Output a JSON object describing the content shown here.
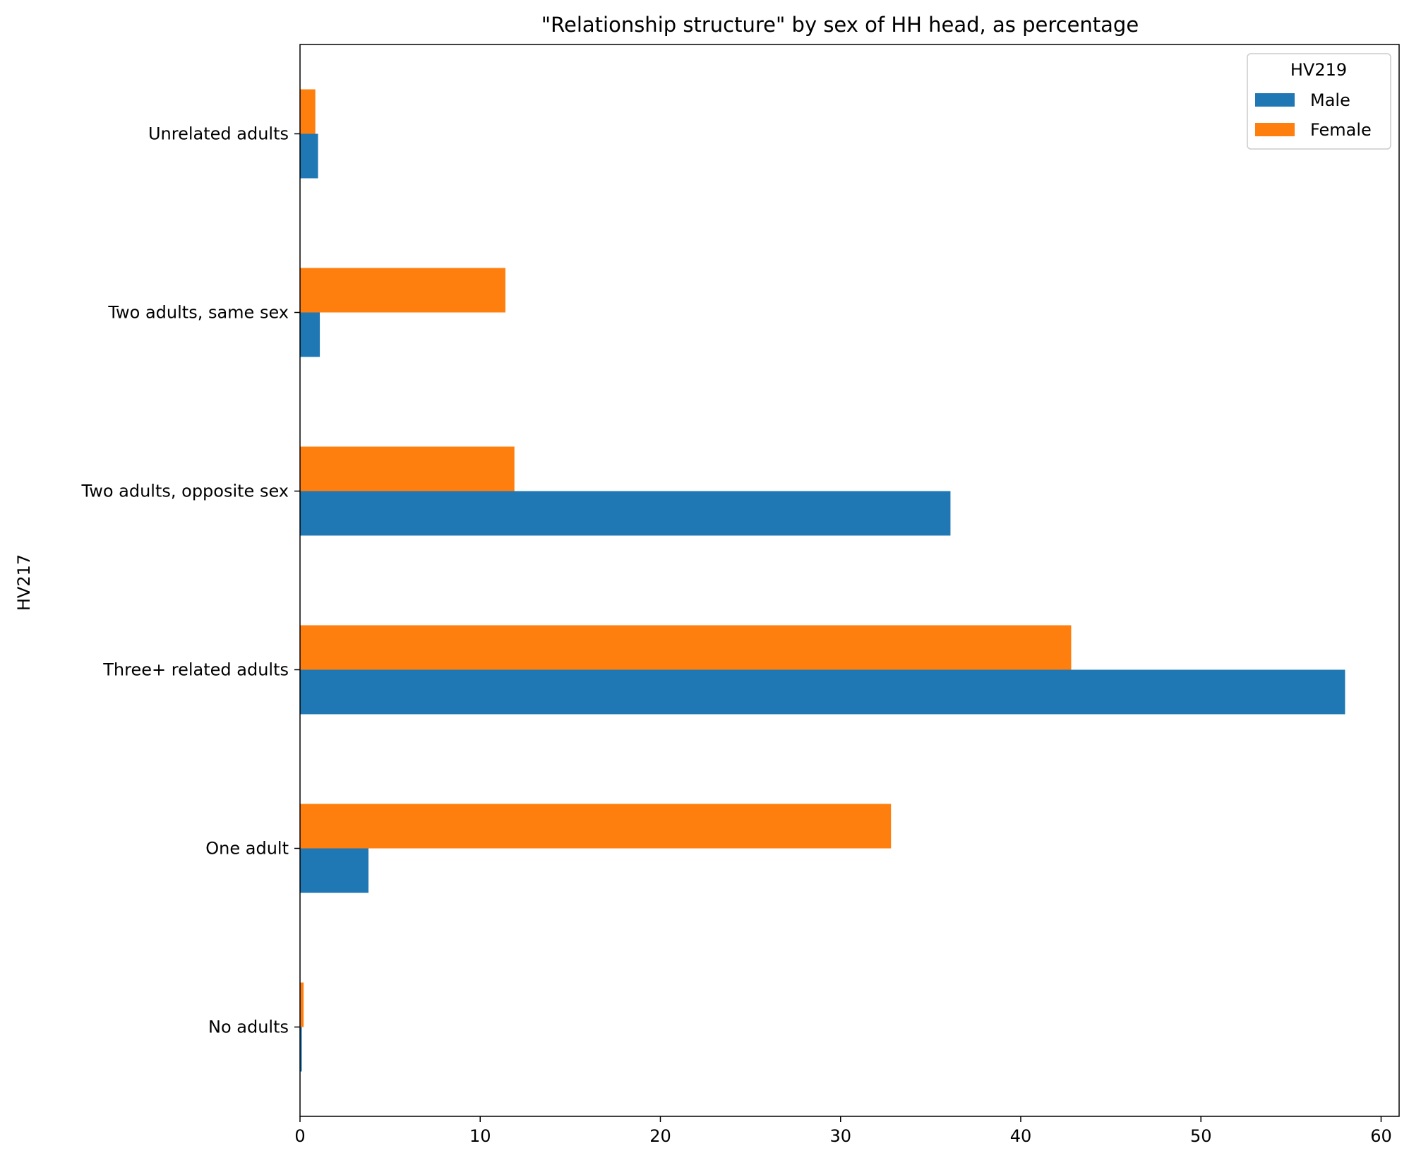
{
  "chart_data": {
    "type": "bar",
    "orientation": "horizontal",
    "title": "\"Relationship structure\" by sex of HH head, as percentage",
    "xlabel": "",
    "ylabel": "HV217",
    "xlim": [
      0,
      61
    ],
    "xticks": [
      0,
      10,
      20,
      30,
      40,
      50,
      60
    ],
    "grid": false,
    "legend": {
      "title": "HV219",
      "placement": "top-right"
    },
    "categories": [
      "No adults",
      "One adult",
      "Three+ related adults",
      "Two adults, opposite sex",
      "Two adults, same sex",
      "Unrelated adults"
    ],
    "series": [
      {
        "name": "Male",
        "color": "#1f77b4",
        "values": [
          0.1,
          3.8,
          58.0,
          36.1,
          1.1,
          1.0
        ]
      },
      {
        "name": "Female",
        "color": "#ff7f0e",
        "values": [
          0.2,
          32.8,
          42.8,
          11.9,
          11.4,
          0.85
        ]
      }
    ]
  }
}
